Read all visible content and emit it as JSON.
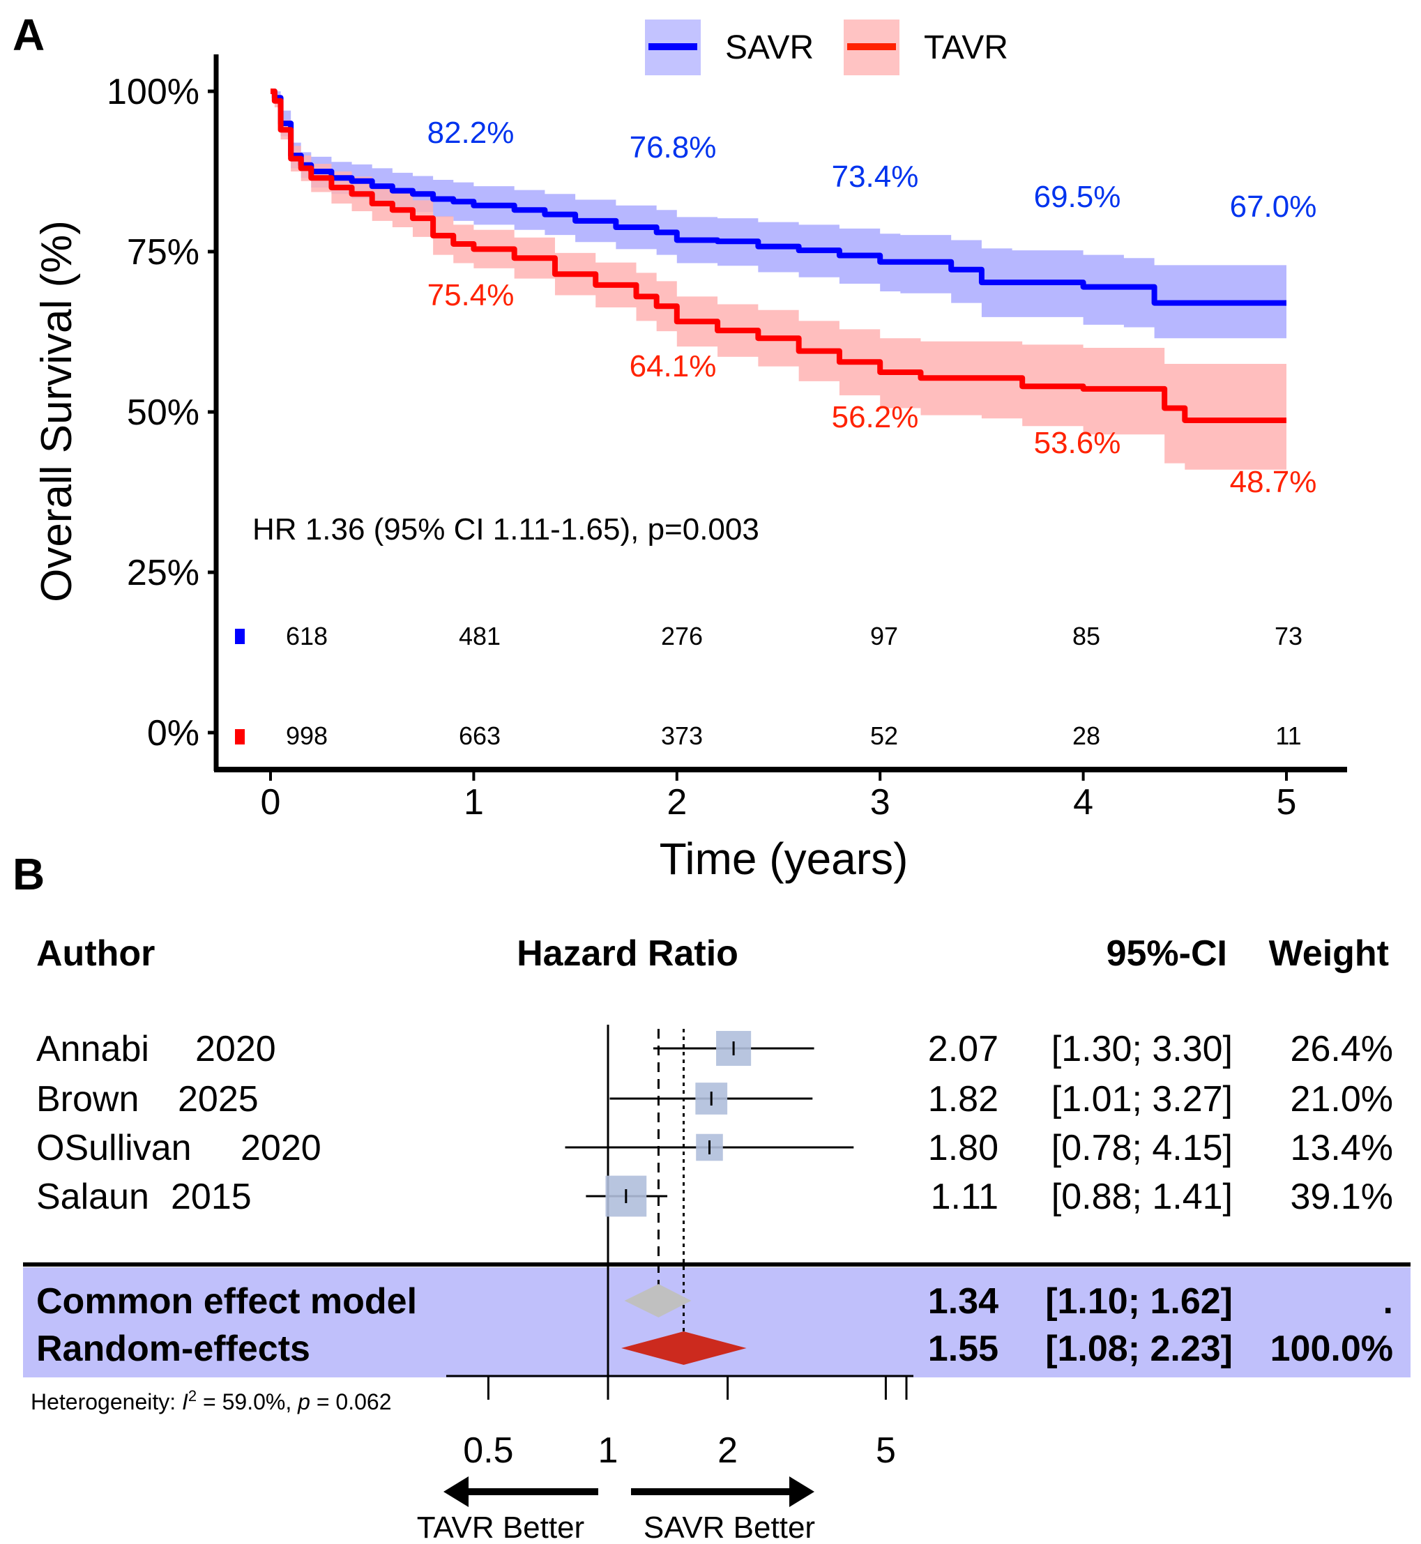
{
  "figure": {
    "panel_a_label": "A",
    "panel_b_label": "B"
  },
  "chart_data": [
    {
      "type": "line",
      "subtype": "kaplan-meier",
      "title": "",
      "xlabel": "Time (years)",
      "ylabel": "Overall Survival (%)",
      "xlim": [
        0,
        5
      ],
      "ylim": [
        0,
        100
      ],
      "x_ticks": [
        "0",
        "1",
        "2",
        "3",
        "4",
        "5"
      ],
      "y_ticks": [
        "0%",
        "25%",
        "50%",
        "75%",
        "100%"
      ],
      "grid": false,
      "legend_position": "top",
      "annotation": "HR 1.36 (95% CI 1.11-1.65), p=0.003",
      "series": [
        {
          "name": "SAVR",
          "color": "#0000ff",
          "band_color": "#b3b3ff",
          "x": [
            0,
            0.02,
            0.05,
            0.1,
            0.15,
            0.2,
            0.3,
            0.4,
            0.5,
            0.6,
            0.7,
            0.8,
            0.9,
            1.0,
            1.2,
            1.35,
            1.5,
            1.7,
            1.9,
            2.0,
            2.2,
            2.4,
            2.6,
            2.8,
            3.0,
            3.1,
            3.35,
            3.5,
            3.65,
            4.0,
            4.2,
            4.35,
            4.5,
            4.7,
            5.0
          ],
          "y": [
            100,
            99,
            95,
            90,
            88.5,
            87.5,
            86.5,
            86,
            85.2,
            84.5,
            84,
            83.2,
            82.8,
            82.2,
            81.5,
            80.8,
            79.8,
            78.8,
            78,
            76.8,
            76.6,
            75.8,
            75.2,
            74.4,
            73.4,
            73.4,
            72.2,
            70.2,
            70.2,
            69.5,
            69.5,
            67.0,
            67.0,
            67.0,
            67.0
          ],
          "lower": [
            100,
            98,
            93,
            88,
            86.5,
            85,
            84,
            83.3,
            82.5,
            81.8,
            81.2,
            80.4,
            79.8,
            79.2,
            78.4,
            77.6,
            76.5,
            75.4,
            74.5,
            73.2,
            72.8,
            71.8,
            71.0,
            70.0,
            68.8,
            68.5,
            67.0,
            64.8,
            64.8,
            63.6,
            63.2,
            61.5,
            61.5,
            61.5,
            61.5
          ],
          "upper": [
            100,
            100,
            97,
            92,
            90.5,
            89.8,
            89,
            88.6,
            88,
            87.3,
            86.8,
            86.2,
            85.8,
            85.2,
            84.6,
            84,
            83.1,
            82.2,
            81.5,
            80.4,
            80.2,
            79.6,
            79.2,
            78.6,
            77.8,
            77.6,
            76.8,
            75.5,
            75.2,
            74.5,
            74.0,
            72.9,
            72.9,
            72.9,
            72.9
          ],
          "landmarks": {
            "x": [
              1,
              2,
              3,
              4,
              5
            ],
            "labels": [
              "82.2%",
              "76.8%",
              "73.4%",
              "69.5%",
              "67.0%"
            ]
          },
          "at_risk": [
            "618",
            "481",
            "276",
            "97",
            "85",
            "73"
          ]
        },
        {
          "name": "TAVR",
          "color": "#ff0000",
          "band_color": "#ffb3b3",
          "x": [
            0,
            0.02,
            0.05,
            0.1,
            0.15,
            0.2,
            0.3,
            0.4,
            0.5,
            0.6,
            0.7,
            0.8,
            0.9,
            1.0,
            1.2,
            1.4,
            1.6,
            1.8,
            1.9,
            2.0,
            2.2,
            2.4,
            2.6,
            2.8,
            3.0,
            3.2,
            3.5,
            3.7,
            4.0,
            4.2,
            4.4,
            4.5,
            5.0
          ],
          "y": [
            100,
            98.5,
            94,
            89.5,
            88,
            86.5,
            85,
            84,
            82.5,
            81.5,
            80.2,
            77.5,
            76.2,
            75.4,
            74,
            71.5,
            69.8,
            68,
            66.5,
            64.1,
            62.7,
            61.5,
            59.5,
            57.8,
            56.2,
            55.3,
            55.3,
            54,
            53.6,
            53.6,
            50.6,
            48.7,
            48.7
          ],
          "lower": [
            100,
            97.5,
            92.5,
            87.5,
            86,
            84.3,
            82.5,
            81.3,
            79.8,
            78.8,
            77.3,
            74.5,
            73.2,
            72.4,
            70.8,
            68.2,
            66.3,
            64.2,
            62.6,
            60.2,
            58.6,
            57.1,
            54.8,
            52.6,
            50.6,
            49.5,
            49.0,
            47.8,
            46.5,
            46.5,
            42.0,
            41.0,
            41.0
          ],
          "upper": [
            100,
            99.5,
            95.5,
            91.5,
            90,
            88.7,
            87.5,
            86.7,
            85.2,
            84.3,
            83.0,
            80.5,
            79.2,
            78.4,
            77.2,
            74.8,
            73.3,
            71.7,
            70.4,
            68.0,
            66.8,
            65.9,
            64.2,
            62.9,
            61.5,
            61.0,
            61.0,
            60.5,
            60.0,
            60.0,
            57.5,
            57.5,
            57.5
          ],
          "landmarks": {
            "x": [
              1,
              2,
              3,
              4,
              5
            ],
            "labels": [
              "75.4%",
              "64.1%",
              "56.2%",
              "53.6%",
              "48.7%"
            ]
          },
          "at_risk": [
            "998",
            "663",
            "373",
            "52",
            "28",
            "11"
          ]
        }
      ],
      "at_risk_times": [
        0,
        1,
        2,
        3,
        4,
        5
      ]
    },
    {
      "type": "forest",
      "title": "",
      "scale": "log",
      "xlim": [
        0.4,
        5.3
      ],
      "x_ticks": [
        0.5,
        1,
        2,
        5
      ],
      "x_tick_labels": [
        "0.5",
        "1",
        "2",
        "5"
      ],
      "columns": {
        "author": "Author",
        "effect": "Hazard Ratio",
        "ci": "95%-CI",
        "weight": "Weight"
      },
      "studies": [
        {
          "author": "Annabi",
          "year": "2020",
          "hr": 2.07,
          "lo": 1.3,
          "hi": 3.3,
          "hr_label": "2.07",
          "ci_label": "[1.30; 3.30]",
          "weight": 26.4,
          "weight_label": "26.4%"
        },
        {
          "author": "Brown",
          "year": "2025",
          "hr": 1.82,
          "lo": 1.01,
          "hi": 3.27,
          "hr_label": "1.82",
          "ci_label": "[1.01; 3.27]",
          "weight": 21.0,
          "weight_label": "21.0%"
        },
        {
          "author": "OSullivan",
          "year": "2020",
          "hr": 1.8,
          "lo": 0.78,
          "hi": 4.15,
          "hr_label": "1.80",
          "ci_label": "[0.78; 4.15]",
          "weight": 13.4,
          "weight_label": "13.4%"
        },
        {
          "author": "Salaun",
          "year": "2015",
          "hr": 1.11,
          "lo": 0.88,
          "hi": 1.41,
          "hr_label": "1.11",
          "ci_label": "[0.88; 1.41]",
          "weight": 39.1,
          "weight_label": "39.1%"
        }
      ],
      "pooled": [
        {
          "label": "Common effect model",
          "hr": 1.34,
          "lo": 1.1,
          "hi": 1.62,
          "hr_label": "1.34",
          "ci_label": "[1.10; 1.62]",
          "weight_label": ".",
          "color": "#c0c0c0"
        },
        {
          "label": "Random-effects",
          "hr": 1.55,
          "lo": 1.08,
          "hi": 2.23,
          "hr_label": "1.55",
          "ci_label": "[1.08; 2.23]",
          "weight_label": "100.0%",
          "color": "#cc2a1e"
        }
      ],
      "heterogeneity": {
        "prefix": "Heterogeneity: ",
        "i2_symbol": "I",
        "i2_sup": "2",
        "i2_value": " = 59.0%, ",
        "p_symbol": "p",
        "p_value": " = 0.062"
      },
      "favours_left": "TAVR Better",
      "favours_right": "SAVR Better",
      "box_color": "#b0bfdc",
      "summary_band_color": "#c0c0fb"
    }
  ]
}
